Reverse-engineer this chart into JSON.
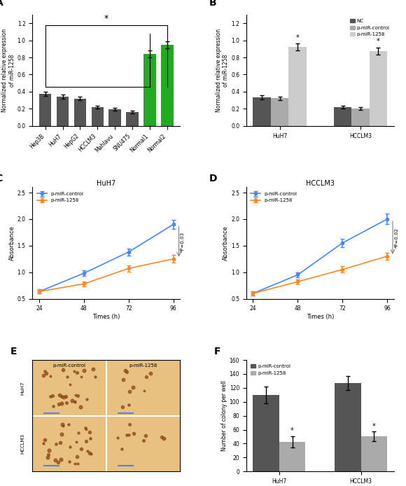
{
  "panel_A": {
    "categories": [
      "Hep3B",
      "HuH7",
      "HepG2",
      "HCCLM3",
      "Mahlavu",
      "SNU475",
      "Normal1",
      "Normal2"
    ],
    "values": [
      0.375,
      0.34,
      0.32,
      0.22,
      0.195,
      0.165,
      0.84,
      0.945
    ],
    "errors": [
      0.025,
      0.025,
      0.02,
      0.02,
      0.015,
      0.015,
      0.04,
      0.04
    ],
    "colors": [
      "#555555",
      "#555555",
      "#555555",
      "#555555",
      "#555555",
      "#555555",
      "#22aa22",
      "#22aa22"
    ],
    "ylabel": "Normalized relative expression\nof miR-1258",
    "ylim": [
      0,
      1.3
    ],
    "yticks": [
      0,
      0.2,
      0.4,
      0.6,
      0.8,
      1.0,
      1.2
    ]
  },
  "panel_B": {
    "groups": [
      "HuH7",
      "HCCLM3"
    ],
    "nc_values": [
      0.335,
      0.22
    ],
    "nc_errors": [
      0.025,
      0.015
    ],
    "ctrl_values": [
      0.325,
      0.205
    ],
    "ctrl_errors": [
      0.02,
      0.015
    ],
    "mir_values": [
      0.92,
      0.875
    ],
    "mir_errors": [
      0.04,
      0.04
    ],
    "nc_color": "#555555",
    "ctrl_color": "#aaaaaa",
    "mir_color": "#cccccc",
    "ylabel": "Normalized relative expression\nof miR-1258",
    "ylim": [
      0,
      1.3
    ],
    "yticks": [
      0,
      0.2,
      0.4,
      0.6,
      0.8,
      1.0,
      1.2
    ]
  },
  "panel_C": {
    "title": "HuH7",
    "times": [
      24,
      48,
      72,
      96
    ],
    "ctrl_values": [
      0.635,
      0.98,
      1.38,
      1.9
    ],
    "ctrl_errors": [
      0.04,
      0.05,
      0.07,
      0.08
    ],
    "mir_values": [
      0.635,
      0.78,
      1.07,
      1.25
    ],
    "mir_errors": [
      0.04,
      0.05,
      0.06,
      0.07
    ],
    "ctrl_color": "#4488ff",
    "mir_color": "#ff8822",
    "ylabel": "Absorbance",
    "xlabel": "Times (h)",
    "ylim": [
      0.5,
      2.6
    ],
    "yticks": [
      0.5,
      1.0,
      1.5,
      2.0,
      2.5
    ],
    "pvalue": "*P=0.03"
  },
  "panel_D": {
    "title": "HCCLM3",
    "times": [
      24,
      48,
      72,
      96
    ],
    "ctrl_values": [
      0.6,
      0.95,
      1.55,
      2.0
    ],
    "ctrl_errors": [
      0.04,
      0.05,
      0.08,
      0.1
    ],
    "mir_values": [
      0.6,
      0.82,
      1.05,
      1.3
    ],
    "mir_errors": [
      0.04,
      0.05,
      0.06,
      0.07
    ],
    "ctrl_color": "#4488ff",
    "mir_color": "#ff8822",
    "ylabel": "Absorbance",
    "xlabel": "Times (h)",
    "ylim": [
      0.5,
      2.6
    ],
    "yticks": [
      0.5,
      1.0,
      1.5,
      2.0,
      2.5
    ],
    "pvalue": "*P=0.02"
  },
  "panel_F": {
    "groups": [
      "HuH7",
      "HCCLM3"
    ],
    "ctrl_values": [
      110,
      127
    ],
    "ctrl_errors": [
      12,
      10
    ],
    "mir_values": [
      42,
      50
    ],
    "mir_errors": [
      8,
      7
    ],
    "ctrl_color": "#555555",
    "mir_color": "#aaaaaa",
    "ylabel": "Number of colony per well",
    "ylim": [
      0,
      160
    ],
    "yticks": [
      0,
      20,
      40,
      60,
      80,
      100,
      120,
      140,
      160
    ]
  },
  "bg_color": "#ffffff"
}
